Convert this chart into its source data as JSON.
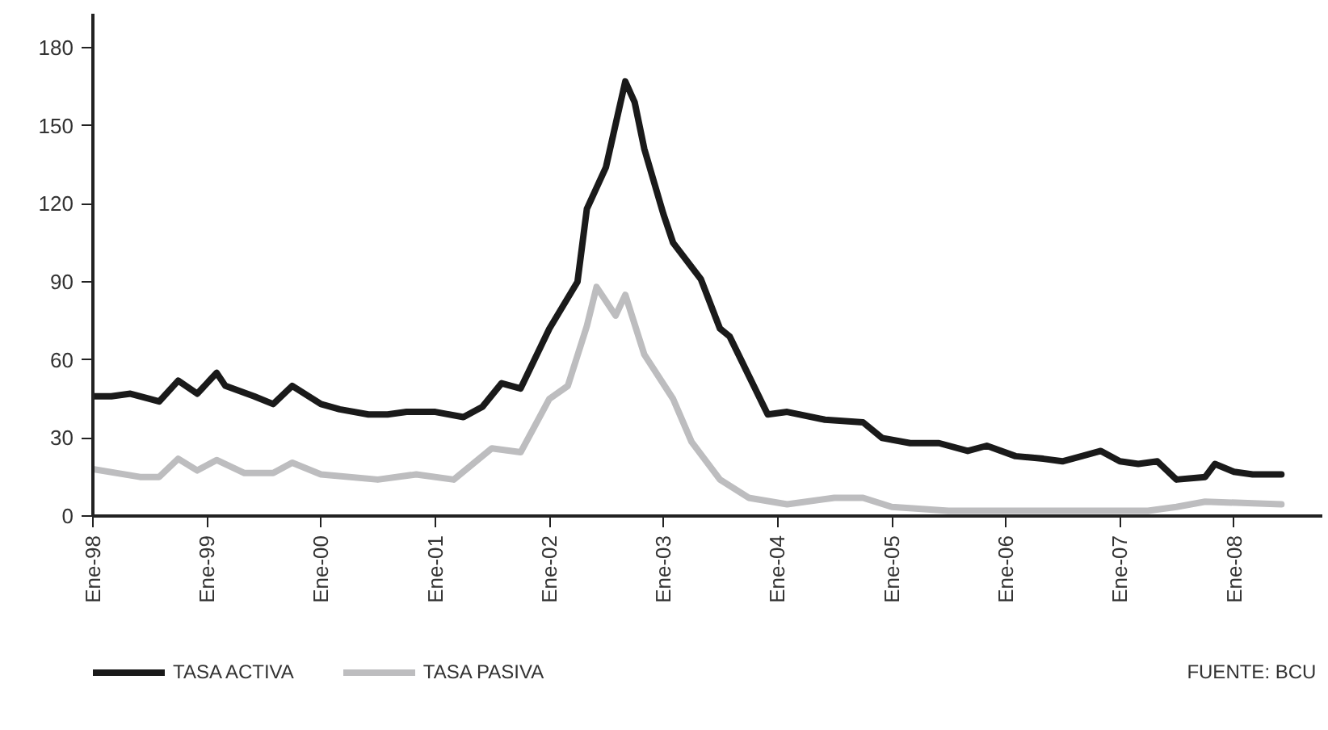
{
  "chart_data": {
    "type": "line",
    "ylim": [
      0,
      193
    ],
    "yticks": [
      0,
      30,
      60,
      90,
      120,
      150,
      180
    ],
    "xlim": [
      "1998-01-01",
      "2008-10-10"
    ],
    "xticks": [
      {
        "value": "1998-01",
        "label": "Ene-98"
      },
      {
        "value": "1999-01",
        "label": "Ene-99"
      },
      {
        "value": "2000-01",
        "label": "Ene-00"
      },
      {
        "value": "2001-01",
        "label": "Ene-01"
      },
      {
        "value": "2002-01",
        "label": "Ene-02"
      },
      {
        "value": "2003-01",
        "label": "Ene-03"
      },
      {
        "value": "2004-01",
        "label": "Ene-04"
      },
      {
        "value": "2005-01",
        "label": "Ene-05"
      },
      {
        "value": "2006-01",
        "label": "Ene-06"
      },
      {
        "value": "2007-01",
        "label": "Ene-07"
      },
      {
        "value": "2008-01",
        "label": "Ene-08"
      }
    ],
    "grid": false,
    "legend": "bottom left",
    "marker": "none",
    "line_style": "solid",
    "annotations": [
      "FUENTE: BCU"
    ],
    "series": [
      {
        "name": "TASA ACTIVA",
        "color": "#1a1a1a",
        "x": [
          "1998-01",
          "1998-03",
          "1998-05",
          "1998-07",
          "1998-08",
          "1998-10",
          "1998-12",
          "1999-02",
          "1999-03",
          "1999-06",
          "1999-08",
          "1999-10",
          "2000-01",
          "2000-03",
          "2000-06",
          "2000-08",
          "2000-10",
          "2001-01",
          "2001-04",
          "2001-06",
          "2001-08",
          "2001-10",
          "2002-01",
          "2002-04",
          "2002-05",
          "2002-07",
          "2002-09",
          "2002-10",
          "2002-11",
          "2003-01",
          "2003-02",
          "2003-05",
          "2003-07",
          "2003-08",
          "2003-12",
          "2004-02",
          "2004-06",
          "2004-10",
          "2004-12",
          "2005-03",
          "2005-06",
          "2005-09",
          "2005-11",
          "2006-02",
          "2006-05",
          "2006-07",
          "2006-09",
          "2006-11",
          "2007-01",
          "2007-03",
          "2007-05",
          "2007-07",
          "2007-10",
          "2007-11",
          "2008-01",
          "2008-03",
          "2008-06"
        ],
        "values": [
          46,
          46,
          47,
          45,
          44,
          52,
          47,
          55,
          50,
          46,
          43,
          50,
          43,
          41,
          39,
          39,
          40,
          40,
          38,
          42,
          51,
          49,
          72,
          90,
          118,
          134,
          167,
          159,
          141,
          116,
          105,
          91,
          72,
          69,
          39,
          40,
          37,
          36,
          30,
          28,
          28,
          25,
          27,
          23,
          22,
          21,
          23,
          25,
          21,
          20,
          21,
          14,
          15,
          20,
          17,
          16,
          16
        ]
      },
      {
        "name": "TASA PASIVA",
        "color": "#bdbdbf",
        "x": [
          "1998-01",
          "1998-06",
          "1998-08",
          "1998-10",
          "1998-12",
          "1999-02",
          "1999-05",
          "1999-08",
          "1999-10",
          "2000-01",
          "2000-07",
          "2000-11",
          "2001-03",
          "2001-07",
          "2001-10",
          "2002-01",
          "2002-03",
          "2002-05",
          "2002-06",
          "2002-08",
          "2002-09",
          "2002-11",
          "2003-02",
          "2003-04",
          "2003-07",
          "2003-10",
          "2004-02",
          "2004-07",
          "2004-10",
          "2005-01",
          "2005-07",
          "2006-06",
          "2007-04",
          "2007-07",
          "2007-10",
          "2008-06"
        ],
        "values": [
          18,
          15,
          15,
          22,
          17.5,
          21.5,
          16.5,
          16.5,
          20.5,
          16,
          14,
          16,
          14,
          26,
          24.5,
          45,
          50,
          73,
          88,
          77,
          85,
          62,
          45,
          28.5,
          14,
          7,
          4.5,
          7,
          7,
          3.5,
          2,
          2,
          2,
          3.5,
          5.5,
          4.5
        ]
      }
    ]
  }
}
